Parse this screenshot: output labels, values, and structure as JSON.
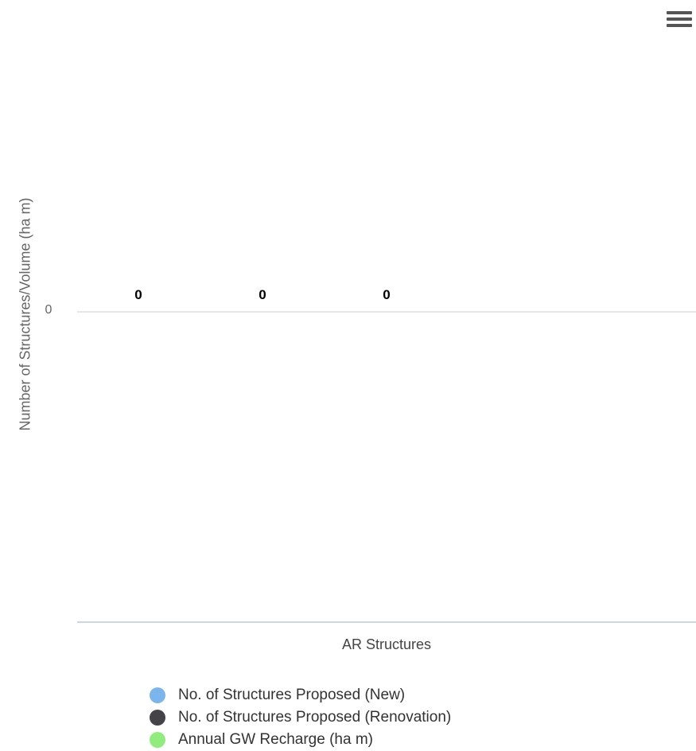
{
  "chart_data": {
    "type": "bar",
    "categories": [
      "AR Structures"
    ],
    "series": [
      {
        "name": "No. of Structures Proposed (New)",
        "values": [
          0
        ],
        "color": "#7cb5ec"
      },
      {
        "name": "No. of Structures Proposed (Renovation)",
        "values": [
          0
        ],
        "color": "#434348"
      },
      {
        "name": "Annual GW Recharge (ha m)",
        "values": [
          0
        ],
        "color": "#90ed7d"
      }
    ],
    "data_labels": [
      "0",
      "0",
      "0"
    ],
    "xlabel": "",
    "ylabel": "Number of Structures/Volume (ha m)",
    "y_ticks": [
      "0"
    ],
    "ylim": [
      -1,
      1
    ],
    "grid": true,
    "legend_placement": "bottom"
  },
  "menu": {
    "icon": "hamburger-menu-icon"
  }
}
